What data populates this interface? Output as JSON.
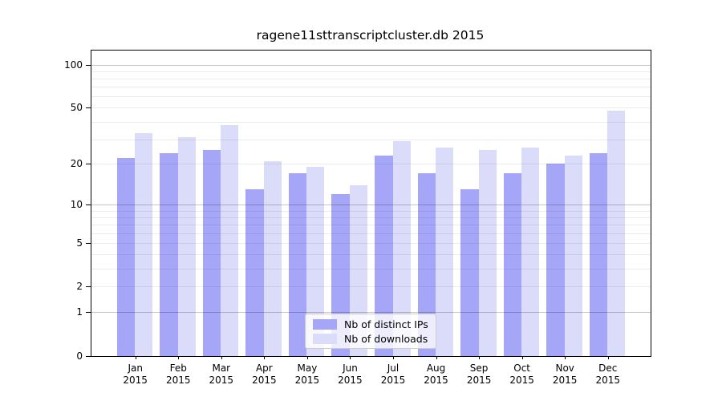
{
  "title": "ragene11sttranscriptcluster.db 2015",
  "chart_data": {
    "type": "bar",
    "title": "ragene11sttranscriptcluster.db 2015",
    "categories": [
      "Jan",
      "Feb",
      "Mar",
      "Apr",
      "May",
      "Jun",
      "Jul",
      "Aug",
      "Sep",
      "Oct",
      "Nov",
      "Dec"
    ],
    "x_year_label": "2015",
    "series": [
      {
        "name": "Nb of distinct IPs",
        "color": "#a6a6f8",
        "values": [
          22,
          24,
          25,
          13,
          17,
          12,
          23,
          17,
          13,
          17,
          20,
          24
        ]
      },
      {
        "name": "Nb of downloads",
        "color": "#dbdbfa",
        "values": [
          33,
          31,
          38,
          21,
          19,
          14,
          29,
          26,
          25,
          26,
          23,
          48
        ]
      }
    ],
    "y_scale": "log10(1+x)",
    "y_ticks": [
      0,
      1,
      2,
      5,
      10,
      20,
      50,
      100
    ],
    "ylim": [
      0,
      126
    ],
    "xlabel": "",
    "ylabel": "",
    "grid": "horizontal",
    "legend_position": "lower-center-inside",
    "colors": {
      "major_gridline": "#c8c8c8",
      "minor_gridline": "#ececec",
      "axis": "#000000",
      "background": "#ffffff"
    }
  }
}
